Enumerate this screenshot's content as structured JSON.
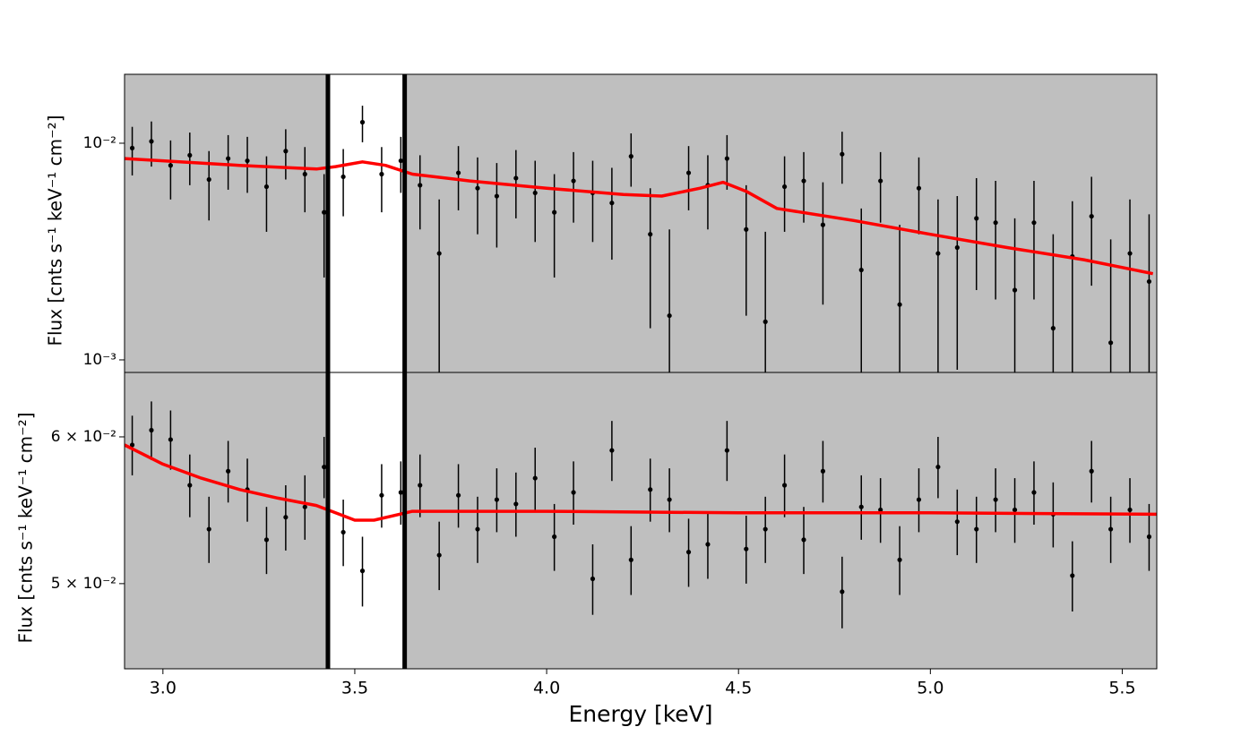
{
  "chart_data": [
    {
      "type": "scatter",
      "ylabel": "Flux [cnts s⁻¹ keV⁻¹ cm⁻²]",
      "ylog": true,
      "background": "#bfbfbf",
      "xlim": [
        2.9,
        5.59
      ],
      "ylim": [
        0.000875,
        0.0208
      ],
      "yticks": [
        {
          "value": 0.01,
          "label": "10⁻²"
        },
        {
          "value": 0.001,
          "label": "10⁻³"
        }
      ],
      "vlines": [
        3.43,
        3.63
      ],
      "points": {
        "color": "#000000",
        "x": [
          2.92,
          2.97,
          3.02,
          3.07,
          3.12,
          3.17,
          3.22,
          3.27,
          3.32,
          3.37,
          3.42,
          3.47,
          3.52,
          3.57,
          3.62,
          3.67,
          3.72,
          3.77,
          3.82,
          3.87,
          3.92,
          3.97,
          4.02,
          4.07,
          4.12,
          4.17,
          4.22,
          4.27,
          4.32,
          4.37,
          4.42,
          4.47,
          4.52,
          4.57,
          4.62,
          4.67,
          4.72,
          4.77,
          4.82,
          4.87,
          4.92,
          4.97,
          5.02,
          5.07,
          5.12,
          5.17,
          5.22,
          5.27,
          5.32,
          5.37,
          5.42,
          5.47,
          5.52,
          5.57
        ],
        "values": [
          0.0095,
          0.0102,
          0.0079,
          0.0088,
          0.0068,
          0.0085,
          0.0083,
          0.0063,
          0.0092,
          0.0072,
          0.0048,
          0.007,
          0.0125,
          0.0072,
          0.0083,
          0.0064,
          0.0031,
          0.0073,
          0.0062,
          0.0057,
          0.0069,
          0.0059,
          0.0048,
          0.0067,
          0.0059,
          0.0053,
          0.0087,
          0.0038,
          0.0016,
          0.0073,
          0.0064,
          0.0085,
          0.004,
          0.0015,
          0.0063,
          0.0067,
          0.0042,
          0.0089,
          0.0026,
          0.0067,
          0.0018,
          0.0062,
          0.0031,
          0.0033,
          0.0045,
          0.0043,
          0.0021,
          0.0043,
          0.0014,
          0.003,
          0.0046,
          0.0012,
          0.0031,
          0.0023
        ],
        "errors": [
          0.0024,
          0.0024,
          0.0024,
          0.0024,
          0.0024,
          0.0024,
          0.0024,
          0.0024,
          0.0024,
          0.0024,
          0.0024,
          0.0024,
          0.0024,
          0.0024,
          0.0024,
          0.0024,
          0.0024,
          0.0024,
          0.0024,
          0.0024,
          0.0024,
          0.0024,
          0.0024,
          0.0024,
          0.0024,
          0.0024,
          0.0024,
          0.0024,
          0.0024,
          0.0024,
          0.0024,
          0.0024,
          0.0024,
          0.0024,
          0.0024,
          0.0024,
          0.0024,
          0.0024,
          0.0024,
          0.0024,
          0.0024,
          0.0024,
          0.0024,
          0.0024,
          0.0024,
          0.0024,
          0.0024,
          0.0024,
          0.0024,
          0.0024,
          0.0024,
          0.0024,
          0.0024,
          0.0024
        ]
      },
      "model": {
        "color": "#ff0000",
        "x": [
          2.9,
          3.0,
          3.2,
          3.4,
          3.45,
          3.52,
          3.58,
          3.65,
          3.8,
          4.0,
          4.2,
          4.3,
          4.4,
          4.46,
          4.52,
          4.6,
          4.8,
          5.0,
          5.2,
          5.4,
          5.58
        ],
        "values": [
          0.0085,
          0.0083,
          0.0079,
          0.0076,
          0.0078,
          0.0082,
          0.0079,
          0.0072,
          0.0067,
          0.0062,
          0.0058,
          0.0057,
          0.0062,
          0.0066,
          0.006,
          0.005,
          0.0044,
          0.0038,
          0.0033,
          0.0029,
          0.0025
        ]
      }
    },
    {
      "type": "scatter",
      "ylabel": "Flux [cnts s⁻¹ keV⁻¹ cm⁻²]",
      "xlabel": "Energy [keV]",
      "ylog": true,
      "background": "#bfbfbf",
      "xlim": [
        2.9,
        5.59
      ],
      "ylim": [
        0.04498,
        0.065
      ],
      "xticks": [
        {
          "value": 3,
          "label": "3.0"
        },
        3.5,
        {
          "value": 4,
          "label": "4.0"
        },
        4.5,
        {
          "value": 5,
          "label": "5.0"
        },
        5.5
      ],
      "yticks": [
        {
          "value": 0.06,
          "label": "6 × 10⁻²"
        },
        {
          "value": 0.05,
          "label": "5 × 10⁻²"
        }
      ],
      "vlines": [
        3.43,
        3.63
      ],
      "points": {
        "color": "#000000",
        "x": [
          2.92,
          2.97,
          3.02,
          3.07,
          3.12,
          3.17,
          3.22,
          3.27,
          3.32,
          3.37,
          3.42,
          3.47,
          3.52,
          3.57,
          3.62,
          3.67,
          3.72,
          3.77,
          3.82,
          3.87,
          3.92,
          3.97,
          4.02,
          4.07,
          4.12,
          4.17,
          4.22,
          4.27,
          4.32,
          4.37,
          4.42,
          4.47,
          4.52,
          4.57,
          4.62,
          4.67,
          4.72,
          4.77,
          4.82,
          4.87,
          4.92,
          4.97,
          5.02,
          5.07,
          5.12,
          5.17,
          5.22,
          5.27,
          5.32,
          5.37,
          5.42,
          5.47,
          5.52,
          5.57
        ],
        "values": [
          0.0594,
          0.0605,
          0.0598,
          0.0565,
          0.0535,
          0.0575,
          0.0562,
          0.0528,
          0.0543,
          0.055,
          0.0578,
          0.0533,
          0.0508,
          0.0558,
          0.056,
          0.0565,
          0.0518,
          0.0558,
          0.0535,
          0.0555,
          0.0552,
          0.057,
          0.053,
          0.056,
          0.0503,
          0.059,
          0.0515,
          0.0562,
          0.0555,
          0.052,
          0.0525,
          0.059,
          0.0522,
          0.0535,
          0.0565,
          0.0528,
          0.0575,
          0.0495,
          0.055,
          0.0548,
          0.0515,
          0.0555,
          0.0578,
          0.054,
          0.0535,
          0.0555,
          0.0548,
          0.056,
          0.0545,
          0.0505,
          0.0575,
          0.0535,
          0.0548,
          0.053
        ],
        "errors": [
          0.0022,
          0.0022,
          0.0022,
          0.0022,
          0.0022,
          0.0022,
          0.0022,
          0.0022,
          0.0022,
          0.0022,
          0.0022,
          0.0022,
          0.0022,
          0.0022,
          0.0022,
          0.0022,
          0.0022,
          0.0022,
          0.0022,
          0.0022,
          0.0022,
          0.0022,
          0.0022,
          0.0022,
          0.0022,
          0.0022,
          0.0022,
          0.0022,
          0.0022,
          0.0022,
          0.0022,
          0.0022,
          0.0022,
          0.0022,
          0.0022,
          0.0022,
          0.0022,
          0.0022,
          0.0022,
          0.0022,
          0.0022,
          0.0022,
          0.0022,
          0.0022,
          0.0022,
          0.0022,
          0.0022,
          0.0022,
          0.0022,
          0.0022,
          0.0022,
          0.0022,
          0.0022,
          0.0022
        ]
      },
      "model": {
        "color": "#ff0000",
        "x": [
          2.9,
          3.0,
          3.1,
          3.2,
          3.3,
          3.4,
          3.45,
          3.5,
          3.55,
          3.6,
          3.65,
          4.0,
          4.5,
          5.0,
          5.59
        ],
        "values": [
          0.0594,
          0.058,
          0.057,
          0.0562,
          0.0556,
          0.0551,
          0.0546,
          0.0541,
          0.0541,
          0.0544,
          0.0547,
          0.0547,
          0.0546,
          0.0546,
          0.0545
        ]
      }
    }
  ]
}
